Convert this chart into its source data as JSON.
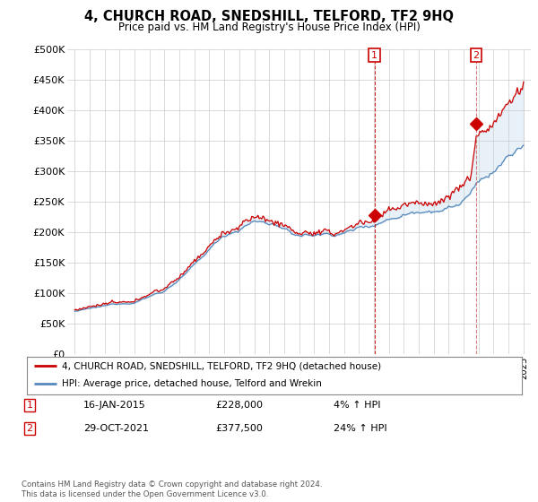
{
  "title": "4, CHURCH ROAD, SNEDSHILL, TELFORD, TF2 9HQ",
  "subtitle": "Price paid vs. HM Land Registry's House Price Index (HPI)",
  "legend_line1": "4, CHURCH ROAD, SNEDSHILL, TELFORD, TF2 9HQ (detached house)",
  "legend_line2": "HPI: Average price, detached house, Telford and Wrekin",
  "annotation1_date": "16-JAN-2015",
  "annotation1_price": "£228,000",
  "annotation1_hpi": "4% ↑ HPI",
  "annotation2_date": "29-OCT-2021",
  "annotation2_price": "£377,500",
  "annotation2_hpi": "24% ↑ HPI",
  "footnote": "Contains HM Land Registry data © Crown copyright and database right 2024.\nThis data is licensed under the Open Government Licence v3.0.",
  "sale1_x": 2015.04,
  "sale1_y": 228000,
  "sale2_x": 2021.83,
  "sale2_y": 377500,
  "ylim": [
    0,
    500000
  ],
  "xlim": [
    1994.5,
    2025.5
  ],
  "yticks": [
    0,
    50000,
    100000,
    150000,
    200000,
    250000,
    300000,
    350000,
    400000,
    450000,
    500000
  ],
  "ytick_labels": [
    "£0",
    "£50K",
    "£100K",
    "£150K",
    "£200K",
    "£250K",
    "£300K",
    "£350K",
    "£400K",
    "£450K",
    "£500K"
  ],
  "line_color_red": "#cc0000",
  "line_color_blue": "#5588bb",
  "grid_color": "#cccccc",
  "bg_color": "#ffffff",
  "sale_marker_color": "#cc0000",
  "annotation_box_color": "#cc0000",
  "shaded_color": "#cce0f0"
}
